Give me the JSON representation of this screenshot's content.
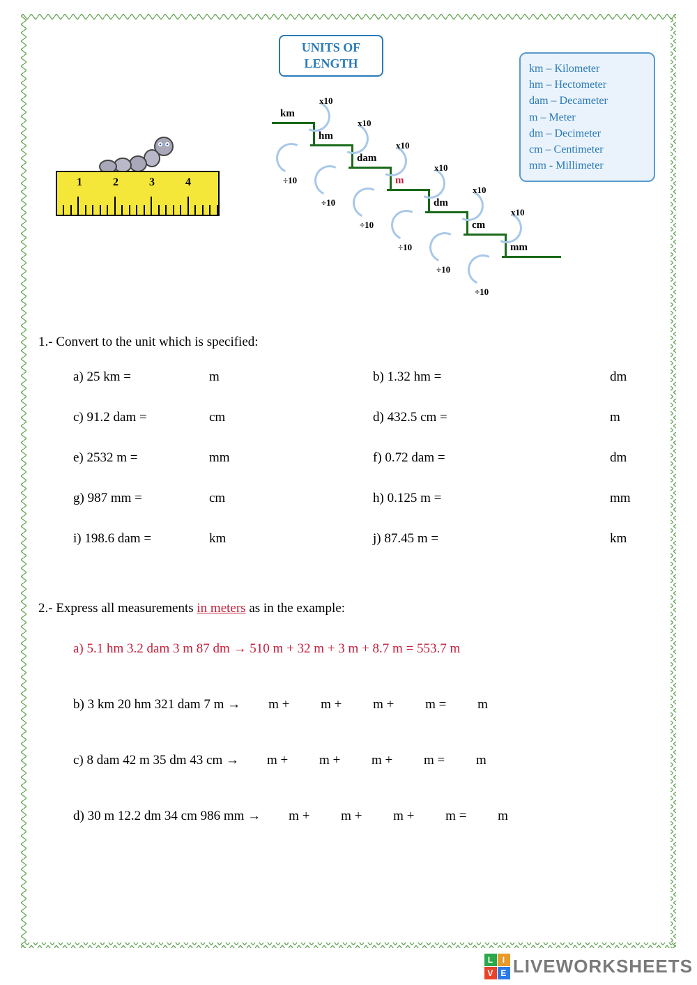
{
  "title": "UNITS OF LENGTH",
  "legend": [
    "km – Kilometer",
    "hm – Hectometer",
    "dam – Decameter",
    "m – Meter",
    "dm – Decimeter",
    "cm – Centimeter",
    "mm - Millimeter"
  ],
  "ruler_numbers": [
    "1",
    "2",
    "3",
    "4"
  ],
  "stairs": {
    "units": [
      "km",
      "hm",
      "dam",
      "m",
      "dm",
      "cm",
      "mm"
    ],
    "step_colors": {
      "line": "#1a6a1a",
      "m_color": "#c41e3a"
    },
    "down_label": "x10",
    "up_label": "÷10",
    "arrow_color": "#a8c8e8"
  },
  "q1": {
    "prompt": "1.- Convert to the unit which is specified:",
    "items": [
      {
        "letter": "a)",
        "value": "25 km =",
        "unit": "m"
      },
      {
        "letter": "b)",
        "value": "1.32 hm =",
        "unit": "dm"
      },
      {
        "letter": "c)",
        "value": "91.2 dam =",
        "unit": "cm"
      },
      {
        "letter": "d)",
        "value": "432.5 cm =",
        "unit": "m"
      },
      {
        "letter": "e)",
        "value": "2532 m =",
        "unit": "mm"
      },
      {
        "letter": "f)",
        "value": "0.72 dam =",
        "unit": "dm"
      },
      {
        "letter": "g)",
        "value": "987 mm =",
        "unit": "cm"
      },
      {
        "letter": "h)",
        "value": "0.125 m =",
        "unit": "mm"
      },
      {
        "letter": "i)",
        "value": "198.6 dam =",
        "unit": "km"
      },
      {
        "letter": "j)",
        "value": "87.45 m =",
        "unit": "km"
      }
    ]
  },
  "q2": {
    "prompt_pre": "2.- Express all measurements ",
    "prompt_em": "in meters",
    "prompt_post": " as in the example:",
    "example": "a) 5.1 hm 3.2 dam 3 m 87 dm  → 510 m + 32 m + 3 m + 8.7 m = 553.7 m",
    "rows": [
      {
        "lhs": "b) 3 km 20 hm 321 dam 7 m  →",
        "pattern": "m + m + m + m = m"
      },
      {
        "lhs": "c) 8 dam 42 m 35 dm 43 cm  →",
        "pattern": "m + m + m + m = m"
      },
      {
        "lhs": "d) 30 m  12.2 dm 34 cm 986 mm →",
        "pattern": "m + m + m + m = m"
      }
    ]
  },
  "watermark": {
    "badge": [
      "L",
      "I",
      "V",
      "E"
    ],
    "badge_colors": [
      "#2aa84a",
      "#e89a2a",
      "#e8442a",
      "#2a7ae8"
    ],
    "text": "LIVEWORKSHEETS"
  }
}
